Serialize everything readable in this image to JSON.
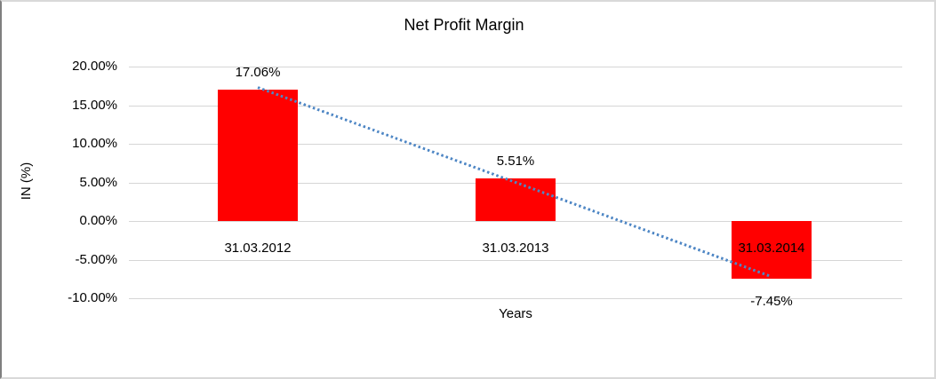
{
  "chart_data": {
    "type": "bar",
    "title": "Net Profit Margin",
    "xlabel": "Years",
    "ylabel": "IN (%)",
    "categories": [
      "31.03.2012",
      "31.03.2013",
      "31.03.2014"
    ],
    "values": [
      17.06,
      5.51,
      -7.45
    ],
    "data_labels": [
      "17.06%",
      "5.51%",
      "-7.45%"
    ],
    "ytick_values": [
      20,
      15,
      10,
      5,
      0,
      -5,
      -10
    ],
    "ytick_labels": [
      "20.00%",
      "15.00%",
      "10.00%",
      "5.00%",
      "0.00%",
      "-5.00%",
      "-10.00%"
    ],
    "ylim": [
      -10,
      20
    ],
    "grid": true,
    "legend": false,
    "bar_color": "#FF0000",
    "gridline_color": "#D6D6D6",
    "trendline": {
      "type": "linear",
      "style": "dotted",
      "color": "#4F87C5"
    }
  }
}
